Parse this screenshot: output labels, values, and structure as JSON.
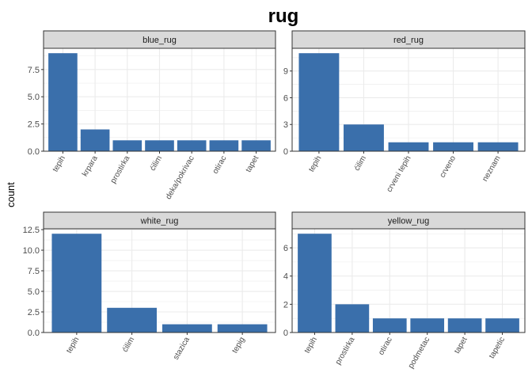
{
  "title": "rug",
  "ylabel": "count",
  "colors": {
    "bar": "#3a6fab",
    "strip": "#d9d9d9",
    "grid": "#ebebeb",
    "panel_border": "#333333",
    "text": "#4d4d4d"
  },
  "chart_data": [
    {
      "type": "bar",
      "facet": "blue_rug",
      "categories": [
        "tepih",
        "krpara",
        "prostirka",
        "ćilim",
        "deka/pokrivac",
        "otirac",
        "tapet"
      ],
      "values": [
        9,
        2,
        1,
        1,
        1,
        1,
        1
      ],
      "ylim": [
        0,
        9.45
      ],
      "yticks": [
        0,
        2.5,
        5,
        7.5
      ],
      "ytick_labels": [
        "0.0",
        "2.5",
        "5.0",
        "7.5"
      ],
      "grid": true
    },
    {
      "type": "bar",
      "facet": "red_rug",
      "categories": [
        "tepih",
        "ćilim",
        "crveni tepih",
        "crveno",
        "neznam"
      ],
      "values": [
        11,
        3,
        1,
        1,
        1
      ],
      "ylim": [
        0,
        11.55
      ],
      "yticks": [
        0,
        3,
        6,
        9
      ],
      "ytick_labels": [
        "0",
        "3",
        "6",
        "9"
      ],
      "grid": true
    },
    {
      "type": "bar",
      "facet": "white_rug",
      "categories": [
        "tepih",
        "ćilim",
        "stazica",
        "tepig"
      ],
      "values": [
        12,
        3,
        1,
        1
      ],
      "ylim": [
        0,
        12.6
      ],
      "yticks": [
        0,
        2.5,
        5,
        7.5,
        10,
        12.5
      ],
      "ytick_labels": [
        "0.0",
        "2.5",
        "5.0",
        "7.5",
        "10.0",
        "12.5"
      ],
      "grid": true
    },
    {
      "type": "bar",
      "facet": "yellow_rug",
      "categories": [
        "tepih",
        "prostirka",
        "otirac",
        "podmetac",
        "tapet",
        "tapetic"
      ],
      "values": [
        7,
        2,
        1,
        1,
        1,
        1
      ],
      "ylim": [
        0,
        7.35
      ],
      "yticks": [
        0,
        2,
        4,
        6
      ],
      "ytick_labels": [
        "0",
        "2",
        "4",
        "6"
      ],
      "grid": true
    }
  ]
}
